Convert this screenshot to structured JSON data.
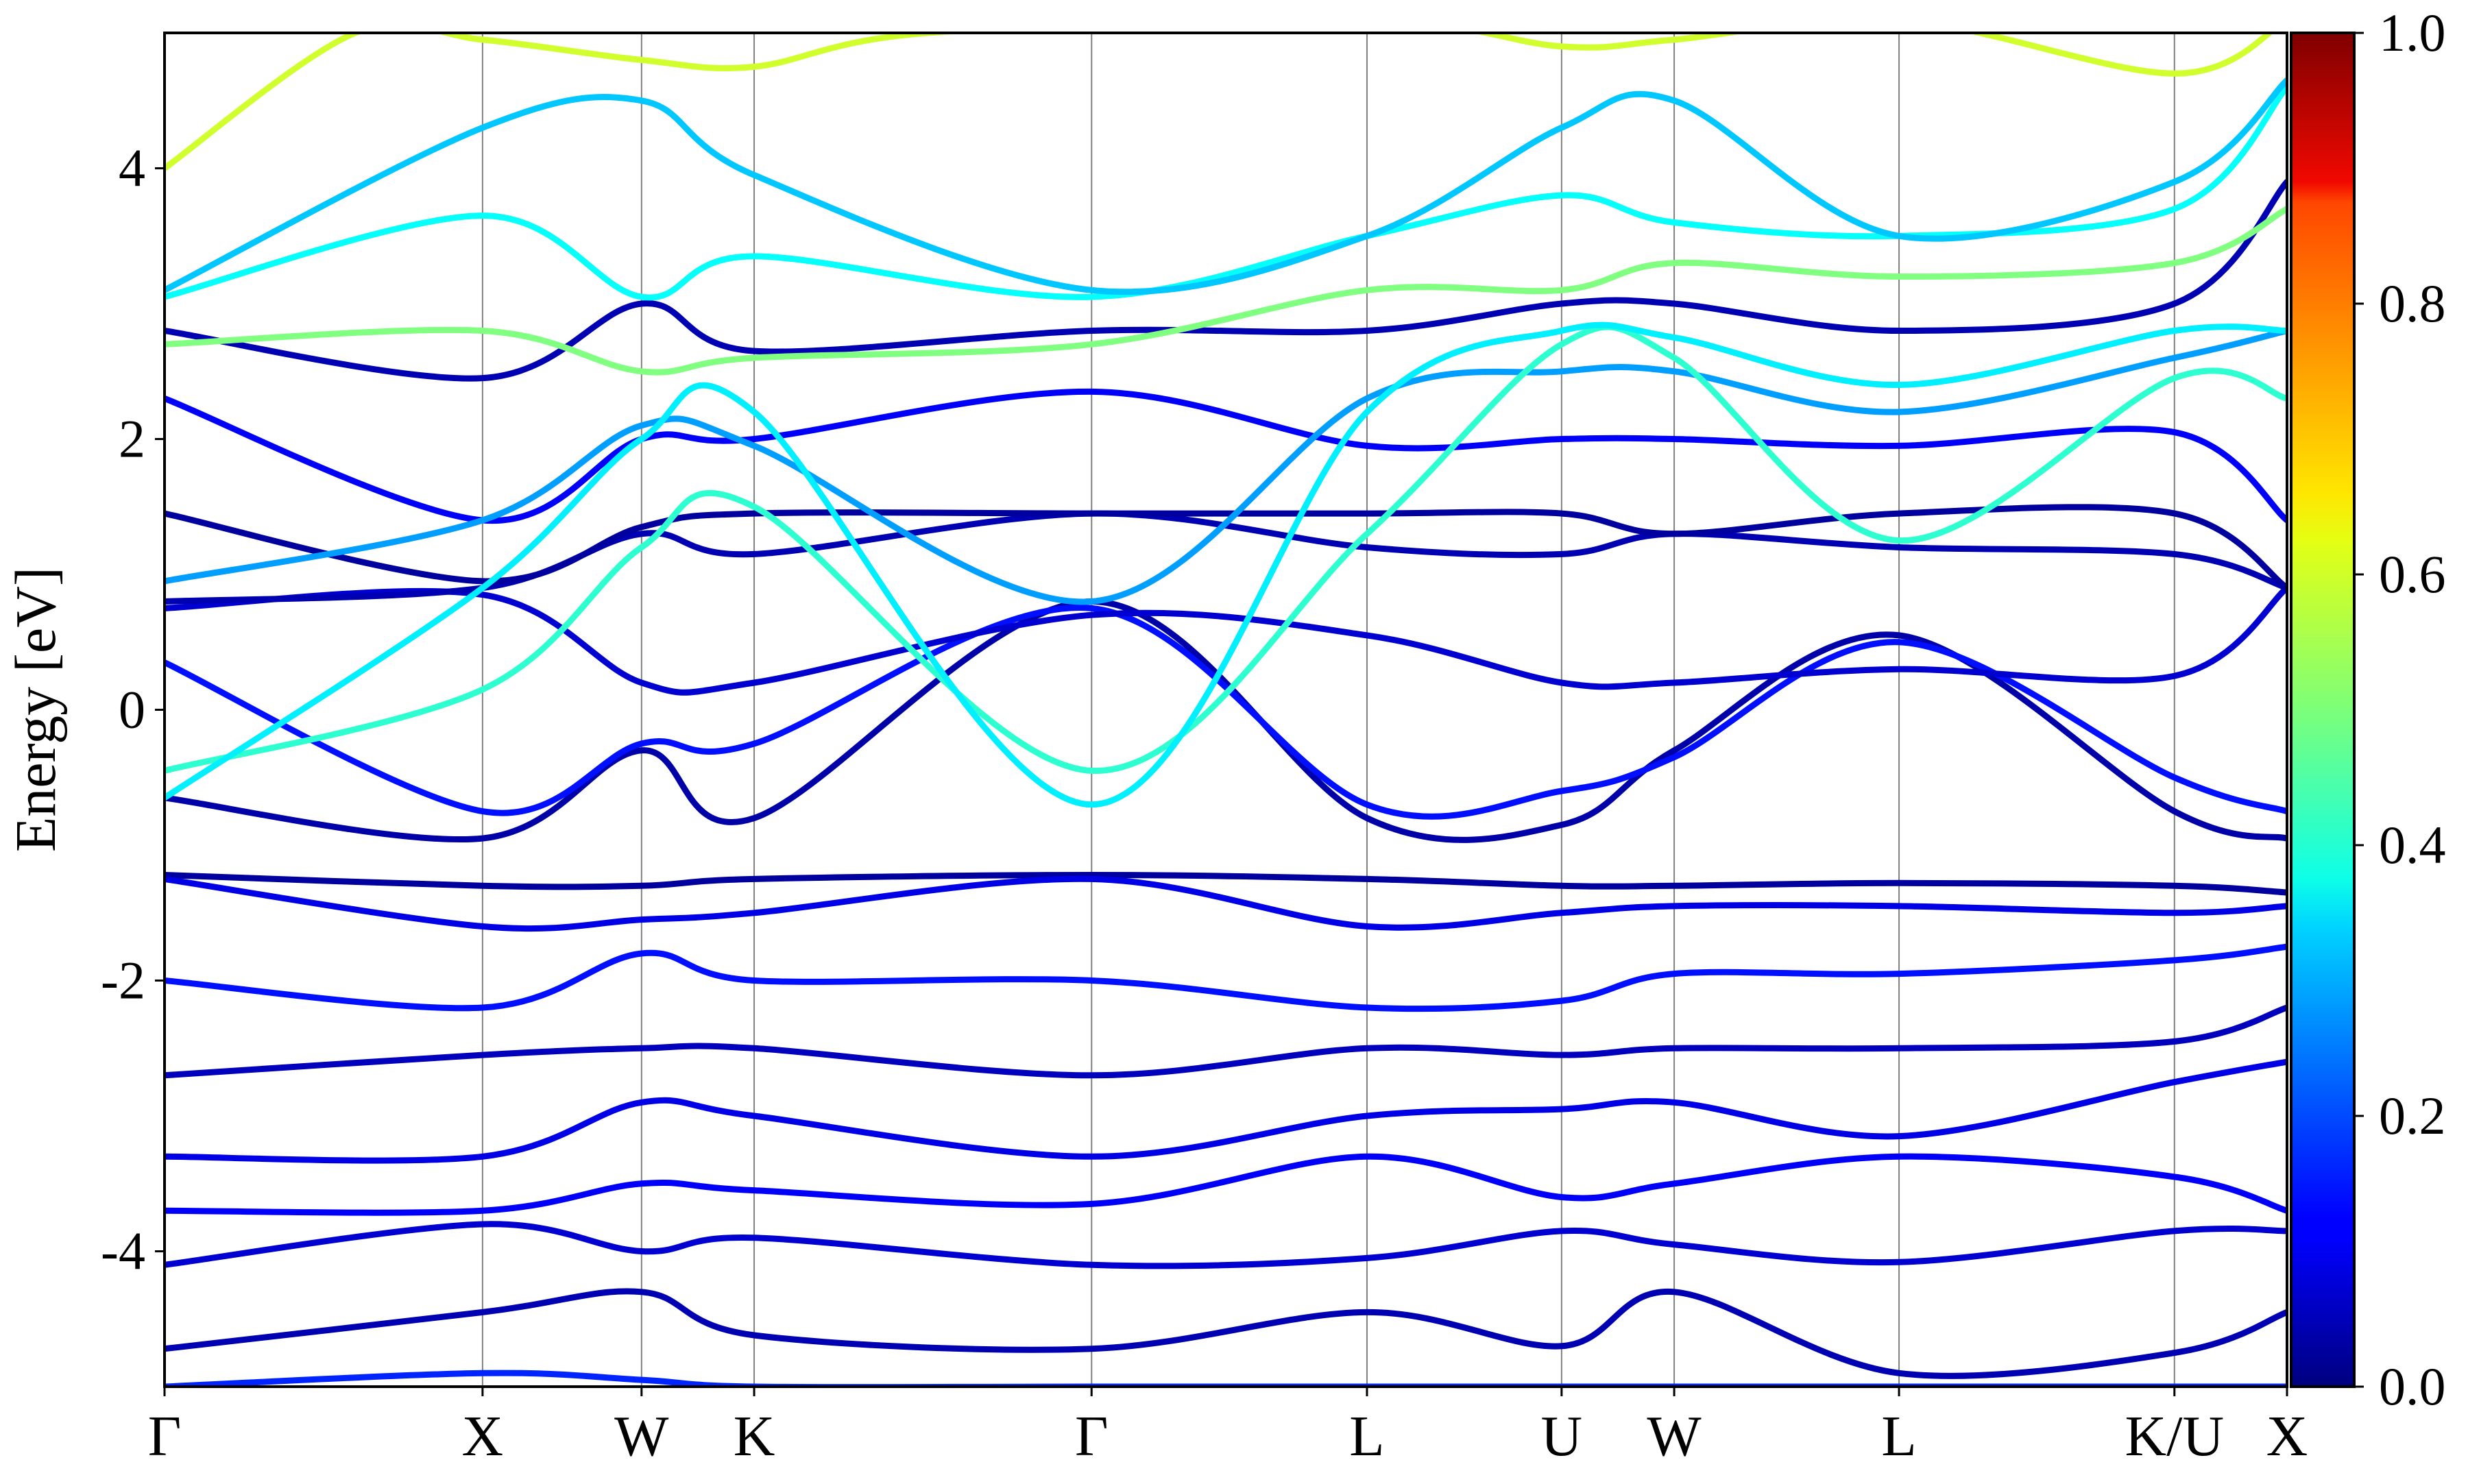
{
  "chart_data": {
    "type": "line",
    "title": "",
    "ylabel": "Energy [eV]",
    "xlabel": "",
    "ylim": [
      -5,
      5
    ],
    "yticks": [
      -4,
      -2,
      0,
      2,
      4
    ],
    "ytick_labels": [
      "-4",
      "-2",
      "0",
      "2",
      "4"
    ],
    "k_path": [
      {
        "label": "Γ",
        "x": 0.0
      },
      {
        "label": "X",
        "x": 1.0
      },
      {
        "label": "W",
        "x": 1.5
      },
      {
        "label": "K",
        "x": 1.854
      },
      {
        "label": "Γ",
        "x": 2.915
      },
      {
        "label": "L",
        "x": 3.781
      },
      {
        "label": "U",
        "x": 4.393
      },
      {
        "label": "W",
        "x": 4.747
      },
      {
        "label": "L",
        "x": 5.454
      },
      {
        "label": "K/U",
        "x": 6.32
      },
      {
        "label": "X",
        "x": 6.674
      }
    ],
    "colorbar": {
      "colormap": "jet",
      "range": [
        0.0,
        1.0
      ],
      "ticks": [
        0.0,
        0.2,
        0.4,
        0.6,
        0.8,
        1.0
      ],
      "tick_labels": [
        "0.0",
        "0.2",
        "0.4",
        "0.6",
        "0.8",
        "1.0"
      ]
    },
    "grid": "vertical lines at high-symmetry points",
    "legend": "none",
    "colors": {
      "low": "#00007f",
      "mid_low": "#0000ff",
      "mid": "#00d4ff",
      "mid_high": "#b4ff4a",
      "high": "#ff9a00",
      "max": "#7f0000"
    },
    "bands": [
      {
        "weight": 0.05,
        "points": [
          [
            0,
            -4.72
          ],
          [
            1.0,
            -4.45
          ],
          [
            1.5,
            -4.3
          ],
          [
            1.854,
            -4.62
          ],
          [
            2.915,
            -4.72
          ],
          [
            3.781,
            -4.45
          ],
          [
            4.393,
            -4.7
          ],
          [
            4.747,
            -4.3
          ],
          [
            5.454,
            -4.9
          ],
          [
            6.32,
            -4.75
          ],
          [
            6.674,
            -4.45
          ]
        ]
      },
      {
        "weight": 0.08,
        "points": [
          [
            0,
            -4.1
          ],
          [
            1.0,
            -3.8
          ],
          [
            1.5,
            -4.0
          ],
          [
            1.854,
            -3.9
          ],
          [
            2.915,
            -4.1
          ],
          [
            3.781,
            -4.05
          ],
          [
            4.393,
            -3.85
          ],
          [
            4.747,
            -3.95
          ],
          [
            5.454,
            -4.08
          ],
          [
            6.32,
            -3.85
          ],
          [
            6.674,
            -3.85
          ]
        ]
      },
      {
        "weight": 0.12,
        "points": [
          [
            0,
            -3.7
          ],
          [
            1.0,
            -3.7
          ],
          [
            1.5,
            -3.5
          ],
          [
            1.854,
            -3.55
          ],
          [
            2.915,
            -3.65
          ],
          [
            3.781,
            -3.3
          ],
          [
            4.393,
            -3.6
          ],
          [
            4.747,
            -3.5
          ],
          [
            5.454,
            -3.3
          ],
          [
            6.32,
            -3.45
          ],
          [
            6.674,
            -3.7
          ]
        ]
      },
      {
        "weight": 0.1,
        "points": [
          [
            0,
            -3.3
          ],
          [
            1.0,
            -3.3
          ],
          [
            1.5,
            -2.9
          ],
          [
            1.854,
            -3.0
          ],
          [
            2.915,
            -3.3
          ],
          [
            3.781,
            -3.0
          ],
          [
            4.393,
            -2.95
          ],
          [
            4.747,
            -2.9
          ],
          [
            5.454,
            -3.15
          ],
          [
            6.32,
            -2.75
          ],
          [
            6.674,
            -2.6
          ]
        ]
      },
      {
        "weight": 0.06,
        "points": [
          [
            0,
            -2.7
          ],
          [
            1.0,
            -2.55
          ],
          [
            1.5,
            -2.5
          ],
          [
            1.854,
            -2.5
          ],
          [
            2.915,
            -2.7
          ],
          [
            3.781,
            -2.5
          ],
          [
            4.393,
            -2.55
          ],
          [
            4.747,
            -2.5
          ],
          [
            5.454,
            -2.5
          ],
          [
            6.32,
            -2.45
          ],
          [
            6.674,
            -2.2
          ]
        ]
      },
      {
        "weight": 0.14,
        "points": [
          [
            0,
            -2.0
          ],
          [
            1.0,
            -2.2
          ],
          [
            1.5,
            -1.8
          ],
          [
            1.854,
            -2.0
          ],
          [
            2.915,
            -2.0
          ],
          [
            3.781,
            -2.2
          ],
          [
            4.393,
            -2.15
          ],
          [
            4.747,
            -1.95
          ],
          [
            5.454,
            -1.95
          ],
          [
            6.32,
            -1.85
          ],
          [
            6.674,
            -1.75
          ]
        ]
      },
      {
        "weight": 0.03,
        "points": [
          [
            0,
            -1.22
          ],
          [
            1.0,
            -1.3
          ],
          [
            1.5,
            -1.3
          ],
          [
            1.854,
            -1.25
          ],
          [
            2.915,
            -1.22
          ],
          [
            3.781,
            -1.25
          ],
          [
            4.393,
            -1.3
          ],
          [
            4.747,
            -1.3
          ],
          [
            5.454,
            -1.28
          ],
          [
            6.32,
            -1.3
          ],
          [
            6.674,
            -1.35
          ]
        ]
      },
      {
        "weight": 0.1,
        "points": [
          [
            0,
            -1.25
          ],
          [
            1.0,
            -1.6
          ],
          [
            1.5,
            -1.55
          ],
          [
            1.854,
            -1.5
          ],
          [
            2.915,
            -1.25
          ],
          [
            3.781,
            -1.6
          ],
          [
            4.393,
            -1.5
          ],
          [
            4.747,
            -1.45
          ],
          [
            5.454,
            -1.45
          ],
          [
            6.32,
            -1.5
          ],
          [
            6.674,
            -1.45
          ]
        ]
      },
      {
        "weight": 0.04,
        "points": [
          [
            0,
            -0.65
          ],
          [
            1.0,
            -0.95
          ],
          [
            1.5,
            -0.3
          ],
          [
            1.854,
            -0.8
          ],
          [
            2.915,
            0.8
          ],
          [
            3.781,
            -0.8
          ],
          [
            4.393,
            -0.85
          ],
          [
            4.747,
            -0.3
          ],
          [
            5.454,
            0.55
          ],
          [
            6.32,
            -0.75
          ],
          [
            6.674,
            -0.95
          ]
        ]
      },
      {
        "weight": 0.14,
        "points": [
          [
            0,
            0.35
          ],
          [
            1.0,
            -0.75
          ],
          [
            1.5,
            -0.25
          ],
          [
            1.854,
            -0.25
          ],
          [
            2.915,
            0.75
          ],
          [
            3.781,
            -0.7
          ],
          [
            4.393,
            -0.6
          ],
          [
            4.747,
            -0.35
          ],
          [
            5.454,
            0.5
          ],
          [
            6.32,
            -0.5
          ],
          [
            6.674,
            -0.75
          ]
        ]
      },
      {
        "weight": 0.08,
        "points": [
          [
            0,
            0.75
          ],
          [
            1.0,
            0.85
          ],
          [
            1.5,
            0.2
          ],
          [
            1.854,
            0.2
          ],
          [
            2.915,
            0.7
          ],
          [
            3.781,
            0.55
          ],
          [
            4.393,
            0.2
          ],
          [
            4.747,
            0.2
          ],
          [
            5.454,
            0.3
          ],
          [
            6.32,
            0.25
          ],
          [
            6.674,
            0.9
          ]
        ]
      },
      {
        "weight": 0.05,
        "points": [
          [
            0,
            0.8
          ],
          [
            1.0,
            0.9
          ],
          [
            1.5,
            1.3
          ],
          [
            1.854,
            1.15
          ],
          [
            2.915,
            1.45
          ],
          [
            3.781,
            1.2
          ],
          [
            4.393,
            1.15
          ],
          [
            4.747,
            1.3
          ],
          [
            5.454,
            1.2
          ],
          [
            6.32,
            1.15
          ],
          [
            6.674,
            0.9
          ]
        ]
      },
      {
        "weight": 0.03,
        "points": [
          [
            0,
            1.45
          ],
          [
            1.0,
            0.95
          ],
          [
            1.5,
            1.35
          ],
          [
            1.854,
            1.45
          ],
          [
            2.915,
            1.45
          ],
          [
            3.781,
            1.45
          ],
          [
            4.393,
            1.45
          ],
          [
            4.747,
            1.3
          ],
          [
            5.454,
            1.45
          ],
          [
            6.32,
            1.45
          ],
          [
            6.674,
            0.9
          ]
        ]
      },
      {
        "weight": 0.12,
        "points": [
          [
            0,
            2.3
          ],
          [
            1.0,
            1.4
          ],
          [
            1.5,
            2.0
          ],
          [
            1.854,
            2.0
          ],
          [
            2.915,
            2.35
          ],
          [
            3.781,
            1.95
          ],
          [
            4.393,
            2.0
          ],
          [
            4.747,
            2.0
          ],
          [
            5.454,
            1.95
          ],
          [
            6.32,
            2.05
          ],
          [
            6.674,
            1.4
          ]
        ]
      },
      {
        "weight": 0.05,
        "points": [
          [
            0,
            2.8
          ],
          [
            1.0,
            2.45
          ],
          [
            1.5,
            3.0
          ],
          [
            1.854,
            2.65
          ],
          [
            2.915,
            2.8
          ],
          [
            3.781,
            2.8
          ],
          [
            4.393,
            3.0
          ],
          [
            4.747,
            3.0
          ],
          [
            5.454,
            2.8
          ],
          [
            6.32,
            3.0
          ],
          [
            6.674,
            3.9
          ]
        ]
      },
      {
        "weight": 0.28,
        "points": [
          [
            0,
            0.95
          ],
          [
            1.0,
            1.4
          ],
          [
            1.5,
            2.1
          ],
          [
            1.854,
            1.95
          ],
          [
            2.915,
            0.8
          ],
          [
            3.781,
            2.3
          ],
          [
            4.393,
            2.5
          ],
          [
            4.747,
            2.5
          ],
          [
            5.454,
            2.2
          ],
          [
            6.32,
            2.6
          ],
          [
            6.674,
            2.8
          ]
        ]
      },
      {
        "weight": 0.42,
        "points": [
          [
            0,
            -0.45
          ],
          [
            1.0,
            0.15
          ],
          [
            1.5,
            1.2
          ],
          [
            1.854,
            1.5
          ],
          [
            2.915,
            -0.45
          ],
          [
            3.781,
            1.3
          ],
          [
            4.393,
            2.7
          ],
          [
            4.747,
            2.6
          ],
          [
            5.454,
            1.25
          ],
          [
            6.32,
            2.45
          ],
          [
            6.674,
            2.3
          ]
        ]
      },
      {
        "weight": 0.36,
        "points": [
          [
            0,
            -0.65
          ],
          [
            1.0,
            0.9
          ],
          [
            1.5,
            2.0
          ],
          [
            1.854,
            2.2
          ],
          [
            2.915,
            -0.7
          ],
          [
            3.781,
            2.2
          ],
          [
            4.393,
            2.8
          ],
          [
            4.747,
            2.75
          ],
          [
            5.454,
            2.4
          ],
          [
            6.32,
            2.8
          ],
          [
            6.674,
            2.8
          ]
        ]
      },
      {
        "weight": 0.5,
        "points": [
          [
            0,
            2.7
          ],
          [
            1.0,
            2.8
          ],
          [
            1.5,
            2.5
          ],
          [
            1.854,
            2.6
          ],
          [
            2.915,
            2.7
          ],
          [
            3.781,
            3.1
          ],
          [
            4.393,
            3.1
          ],
          [
            4.747,
            3.3
          ],
          [
            5.454,
            3.2
          ],
          [
            6.32,
            3.3
          ],
          [
            6.674,
            3.7
          ]
        ]
      },
      {
        "weight": 0.38,
        "points": [
          [
            0,
            3.05
          ],
          [
            1.0,
            3.65
          ],
          [
            1.5,
            3.05
          ],
          [
            1.854,
            3.35
          ],
          [
            2.915,
            3.05
          ],
          [
            3.781,
            3.5
          ],
          [
            4.393,
            3.8
          ],
          [
            4.747,
            3.6
          ],
          [
            5.454,
            3.5
          ],
          [
            6.32,
            3.7
          ],
          [
            6.674,
            4.6
          ]
        ]
      },
      {
        "weight": 0.32,
        "points": [
          [
            0,
            3.1
          ],
          [
            1.0,
            4.3
          ],
          [
            1.5,
            4.5
          ],
          [
            1.854,
            3.95
          ],
          [
            2.915,
            3.1
          ],
          [
            3.781,
            3.5
          ],
          [
            4.393,
            4.3
          ],
          [
            4.747,
            4.5
          ],
          [
            5.454,
            3.5
          ],
          [
            6.32,
            3.9
          ],
          [
            6.674,
            4.65
          ]
        ]
      },
      {
        "weight": 0.58,
        "points": [
          [
            0,
            4.0
          ],
          [
            0.6,
            5.0
          ],
          [
            1.0,
            4.95
          ],
          [
            1.5,
            4.8
          ],
          [
            1.854,
            4.75
          ],
          [
            2.4,
            5.0
          ],
          [
            3.781,
            5.1
          ],
          [
            4.393,
            4.9
          ],
          [
            4.747,
            4.95
          ],
          [
            5.454,
            5.1
          ],
          [
            6.32,
            4.7
          ],
          [
            6.674,
            5.1
          ]
        ]
      },
      {
        "weight": 0.16,
        "points": [
          [
            0,
            -5.0
          ],
          [
            1.0,
            -4.9
          ],
          [
            1.5,
            -4.95
          ],
          [
            1.854,
            -5.0
          ],
          [
            2.915,
            -5.0
          ],
          [
            3.781,
            -5.0
          ],
          [
            4.393,
            -5.0
          ],
          [
            4.747,
            -5.0
          ],
          [
            5.454,
            -5.0
          ],
          [
            6.32,
            -5.0
          ],
          [
            6.674,
            -5.0
          ]
        ]
      }
    ]
  }
}
